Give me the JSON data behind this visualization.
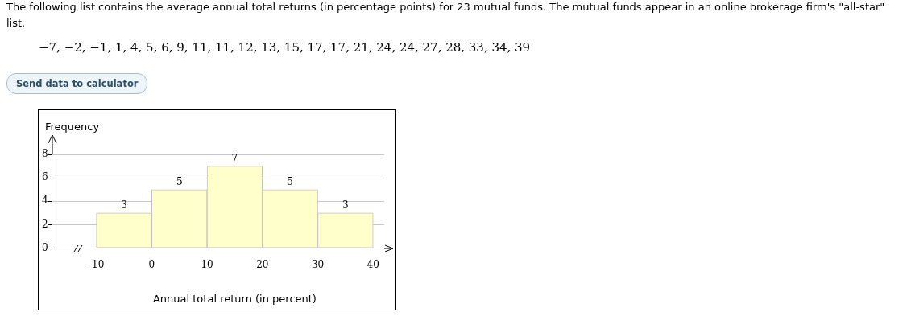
{
  "chart_data": {
    "type": "histogram",
    "title": "The following list contains the average annual total returns (in percentage points) for 23 mutual funds. The mutual funds appear in an online brokerage firm's \"all-star\" list.",
    "subtitle": "−7, −2, −1, 1, 4, 5, 6, 9, 11, 11, 12, 13, 15, 17, 17, 21, 24, 24, 27, 28, 33, 34, 39",
    "annotations": [
      "Send data to calculator"
    ],
    "bins": [
      -10,
      0,
      10,
      20,
      30,
      40
    ],
    "values": [
      3,
      5,
      7,
      5,
      3
    ],
    "color": "#ffffcc",
    "xlabel": "Annual total return (in percent)",
    "ylabel": "Frequency",
    "xlim": [
      -18,
      42
    ],
    "xticks": [
      -10,
      0,
      10,
      20,
      30,
      40
    ],
    "ylim": [
      0,
      8
    ],
    "yticks": [
      0,
      2,
      4,
      6,
      8
    ],
    "grid": "y",
    "legend": false,
    "data_labels": true
  }
}
